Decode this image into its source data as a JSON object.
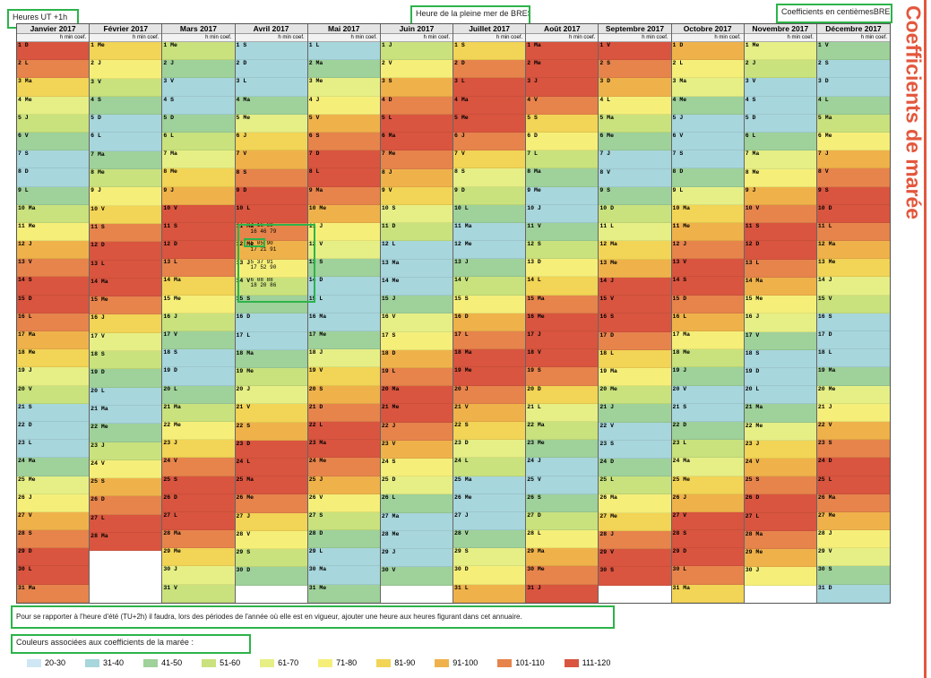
{
  "labels": {
    "heures": "Heures UT +1h",
    "pleine_mer": "Heure de la pleine mer de BREST",
    "coefficients": "Coefficients en centièmesBREST",
    "note": "Pour se rapporter à l'heure d'été (TU+2h) il faudra, lors des périodes de l'année où elle est en vigueur, ajouter une heure aux heures figurant dans cet annuaire.",
    "legend_title": "Couleurs associées aux coefficients de la marée :",
    "side_title": "Coefficients de marée",
    "col_sub": "h min coef."
  },
  "months": [
    {
      "name": "Janvier 2017",
      "days": 31
    },
    {
      "name": "Février 2017",
      "days": 28
    },
    {
      "name": "Mars 2017",
      "days": 31
    },
    {
      "name": "Avril 2017",
      "days": 30
    },
    {
      "name": "Mai 2017",
      "days": 31
    },
    {
      "name": "Juin 2017",
      "days": 30
    },
    {
      "name": "Juillet 2017",
      "days": 31
    },
    {
      "name": "Août 2017",
      "days": 31
    },
    {
      "name": "Septembre 2017",
      "days": 30
    },
    {
      "name": "Octobre 2017",
      "days": 31
    },
    {
      "name": "Novembre 2017",
      "days": 30
    },
    {
      "name": "Décembre 2017",
      "days": 31
    }
  ],
  "day_abbr": [
    "D",
    "L",
    "Ma",
    "Me",
    "J",
    "V",
    "S"
  ],
  "first_weekday": [
    0,
    3,
    3,
    6,
    1,
    4,
    6,
    2,
    5,
    0,
    3,
    5
  ],
  "avril_sample": [
    {
      "d": "11 Ma",
      "t1": "4 16 69",
      "t2": "16 46 79"
    },
    {
      "d": "12 Me",
      "t1": "5 05 90",
      "t2": "17 21 91"
    },
    {
      "d": "13 J",
      "t1": "5 37 91",
      "t2": "17 52 90"
    },
    {
      "d": "14 V",
      "t1": "6 08 88",
      "t2": "18 20 86"
    }
  ],
  "legend": [
    {
      "label": "20-30",
      "color": "#cfe6f4"
    },
    {
      "label": "31-40",
      "color": "#a7d6dc"
    },
    {
      "label": "41-50",
      "color": "#9fd19a"
    },
    {
      "label": "51-60",
      "color": "#c9e27d"
    },
    {
      "label": "61-70",
      "color": "#e6ef86"
    },
    {
      "label": "71-80",
      "color": "#f5ef7a"
    },
    {
      "label": "81-90",
      "color": "#f2d456"
    },
    {
      "label": "91-100",
      "color": "#efb24b"
    },
    {
      "label": "101-110",
      "color": "#e6844c"
    },
    {
      "label": "111-120",
      "color": "#d9553f"
    }
  ]
}
